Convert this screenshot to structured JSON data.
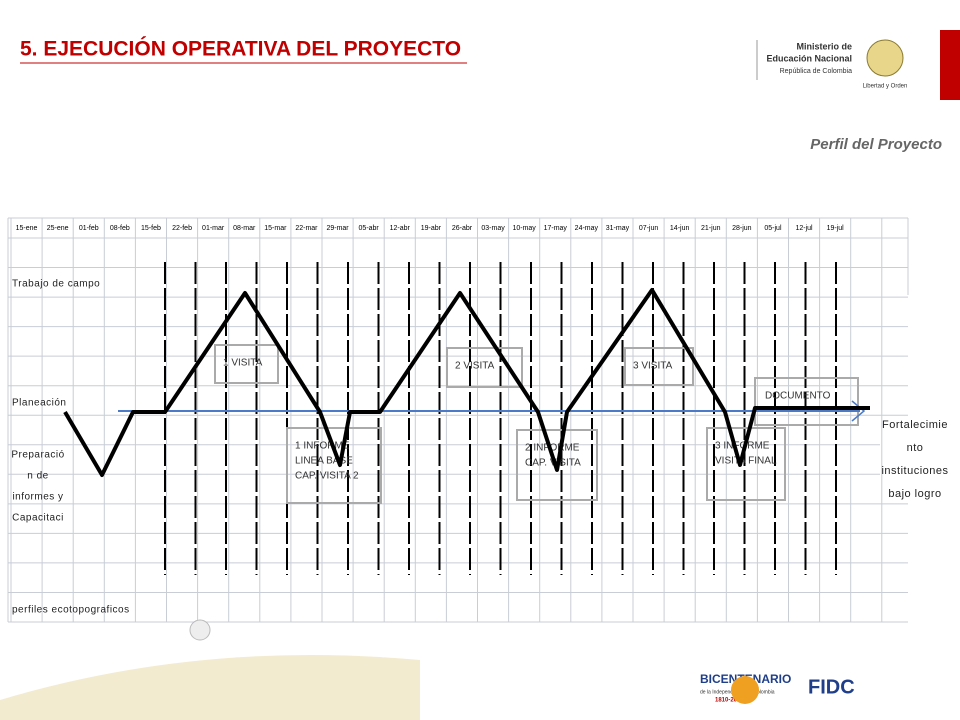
{
  "header": {
    "title": "5. EJECUCIÓN OPERATIVA DEL PROYECTO",
    "subtitle": "Perfil del Proyecto",
    "logo": {
      "line1": "Ministerio de",
      "line2": "Educación Nacional",
      "line3": "República de Colombia",
      "motto": "Libertad y Orden"
    }
  },
  "schedule": {
    "dates": [
      "15-ene",
      "25-ene",
      "01-feb",
      "08-feb",
      "15-feb",
      "22-feb",
      "01-mar",
      "08-mar",
      "15-mar",
      "22-mar",
      "29-mar",
      "05-abr",
      "12-abr",
      "19-abr",
      "26-abr",
      "03-may",
      "10-may",
      "17-may",
      "24-may",
      "31-may",
      "07-jun",
      "14-jun",
      "21-jun",
      "28-jun",
      "05-jul",
      "12-jul",
      "19-jul"
    ],
    "rows": [
      {
        "lines": [
          "Trabajo de campo"
        ]
      },
      {
        "lines": [
          "Planeación"
        ]
      },
      {
        "lines": [
          "Preparació",
          "n de",
          "informes y",
          "Capacitaci"
        ]
      },
      {
        "lines": [
          "perfiles ecotopograficos"
        ]
      }
    ],
    "boxes": [
      {
        "lines": [
          "1 VISITA"
        ]
      },
      {
        "lines": [
          "1 INFORME",
          "LINEA BASE",
          "CAP. VISITA 2"
        ]
      },
      {
        "lines": [
          "2 VISITA"
        ]
      },
      {
        "lines": [
          "2 INFORME",
          "CAP. VISITA"
        ]
      },
      {
        "lines": [
          "3 VISITA"
        ]
      },
      {
        "lines": [
          "3 INFORME",
          "VISITA FINAL"
        ]
      },
      {
        "lines": [
          "DOCUMENTO"
        ]
      }
    ],
    "goal": {
      "lines": [
        "Fortalecimie",
        "nto",
        "instituciones",
        "bajo logro"
      ]
    }
  },
  "footer": {
    "bicentenario": "BICENTENARIO",
    "bicentenario_sub": "de la Independencia de Colombia",
    "years": "1810-2010",
    "fidc": "FIDC"
  }
}
